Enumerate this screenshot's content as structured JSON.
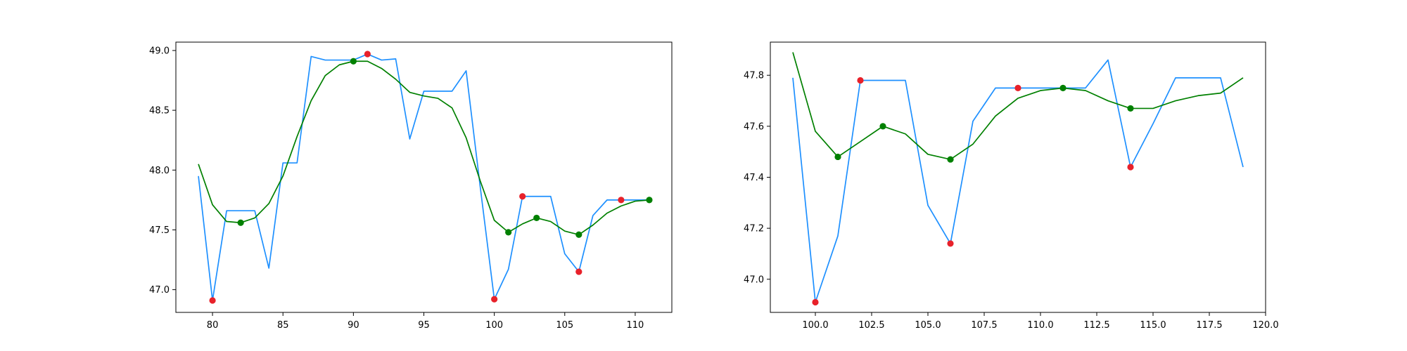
{
  "chart_data": [
    {
      "type": "line",
      "title": "",
      "xlabel": "",
      "ylabel": "",
      "xlim": [
        77.4,
        112.6
      ],
      "ylim": [
        46.81,
        49.07
      ],
      "xticks": [
        80,
        85,
        90,
        95,
        100,
        105,
        110
      ],
      "xtick_labels": [
        "80",
        "85",
        "90",
        "95",
        "100",
        "105",
        "110"
      ],
      "yticks": [
        47.0,
        47.5,
        48.0,
        48.5,
        49.0
      ],
      "ytick_labels": [
        "47.0",
        "47.5",
        "48.0",
        "48.5",
        "49.0"
      ],
      "grid": false,
      "series": [
        {
          "kind": "line",
          "color": "#1e90ff",
          "x": [
            79,
            80,
            81,
            82,
            83,
            84,
            85,
            86,
            87,
            88,
            89,
            90,
            91,
            92,
            93,
            94,
            95,
            96,
            97,
            98,
            99,
            100,
            101,
            102,
            103,
            104,
            105,
            106,
            107,
            108,
            109,
            110,
            111
          ],
          "y": [
            47.95,
            46.91,
            47.66,
            47.66,
            47.66,
            47.18,
            48.06,
            48.06,
            48.95,
            48.92,
            48.92,
            48.92,
            48.97,
            48.92,
            48.93,
            48.26,
            48.66,
            48.66,
            48.66,
            48.83,
            47.86,
            46.92,
            47.17,
            47.78,
            47.78,
            47.78,
            47.3,
            47.15,
            47.62,
            47.75,
            47.75,
            47.75,
            47.75
          ]
        },
        {
          "kind": "line",
          "color": "#008000",
          "x": [
            79,
            80,
            81,
            82,
            83,
            84,
            85,
            86,
            87,
            88,
            89,
            90,
            91,
            92,
            93,
            94,
            95,
            96,
            97,
            98,
            99,
            100,
            101,
            102,
            103,
            104,
            105,
            106,
            107,
            108,
            109,
            110,
            111
          ],
          "y": [
            48.05,
            47.71,
            47.57,
            47.56,
            47.6,
            47.72,
            47.95,
            48.28,
            48.58,
            48.79,
            48.88,
            48.91,
            48.91,
            48.85,
            48.76,
            48.65,
            48.62,
            48.6,
            48.52,
            48.27,
            47.91,
            47.58,
            47.48,
            47.55,
            47.6,
            47.57,
            47.49,
            47.46,
            47.54,
            47.64,
            47.7,
            47.74,
            47.75
          ]
        },
        {
          "kind": "points",
          "color": "#e8212a",
          "x": [
            80,
            91,
            100,
            102,
            106,
            109
          ],
          "y": [
            46.91,
            48.97,
            46.92,
            47.78,
            47.15,
            47.75
          ]
        },
        {
          "kind": "points",
          "color": "#008000",
          "x": [
            82,
            90,
            101,
            103,
            106,
            111
          ],
          "y": [
            47.56,
            48.91,
            47.48,
            47.6,
            47.46,
            47.75
          ]
        }
      ]
    },
    {
      "type": "line",
      "title": "",
      "xlabel": "",
      "ylabel": "",
      "xlim": [
        98.0,
        120.0
      ],
      "ylim": [
        46.87,
        47.93
      ],
      "xticks": [
        100.0,
        102.5,
        105.0,
        107.5,
        110.0,
        112.5,
        115.0,
        117.5,
        120.0
      ],
      "xtick_labels": [
        "100.0",
        "102.5",
        "105.0",
        "107.5",
        "110.0",
        "112.5",
        "115.0",
        "117.5",
        "120.0"
      ],
      "yticks": [
        47.0,
        47.2,
        47.4,
        47.6,
        47.8
      ],
      "ytick_labels": [
        "47.0",
        "47.2",
        "47.4",
        "47.6",
        "47.8"
      ],
      "grid": false,
      "series": [
        {
          "kind": "line",
          "color": "#1e90ff",
          "x": [
            99,
            100,
            101,
            102,
            103,
            104,
            105,
            106,
            107,
            108,
            109,
            110,
            111,
            112,
            113,
            114,
            115,
            116,
            117,
            118,
            119
          ],
          "y": [
            47.79,
            46.91,
            47.17,
            47.78,
            47.78,
            47.78,
            47.29,
            47.14,
            47.62,
            47.75,
            47.75,
            47.75,
            47.75,
            47.75,
            47.86,
            47.44,
            47.61,
            47.79,
            47.79,
            47.79,
            47.44
          ]
        },
        {
          "kind": "line",
          "color": "#008000",
          "x": [
            99,
            100,
            101,
            102,
            103,
            104,
            105,
            106,
            107,
            108,
            109,
            110,
            111,
            112,
            113,
            114,
            115,
            116,
            117,
            118,
            119
          ],
          "y": [
            47.89,
            47.58,
            47.48,
            47.54,
            47.6,
            47.57,
            47.49,
            47.47,
            47.53,
            47.64,
            47.71,
            47.74,
            47.75,
            47.74,
            47.7,
            47.67,
            47.67,
            47.7,
            47.72,
            47.73,
            47.79
          ]
        },
        {
          "kind": "points",
          "color": "#e8212a",
          "x": [
            100,
            102,
            106,
            109,
            114
          ],
          "y": [
            46.91,
            47.78,
            47.14,
            47.75,
            47.44
          ]
        },
        {
          "kind": "points",
          "color": "#008000",
          "x": [
            101,
            103,
            106,
            111,
            114
          ],
          "y": [
            47.48,
            47.6,
            47.47,
            47.75,
            47.67
          ]
        }
      ]
    }
  ]
}
